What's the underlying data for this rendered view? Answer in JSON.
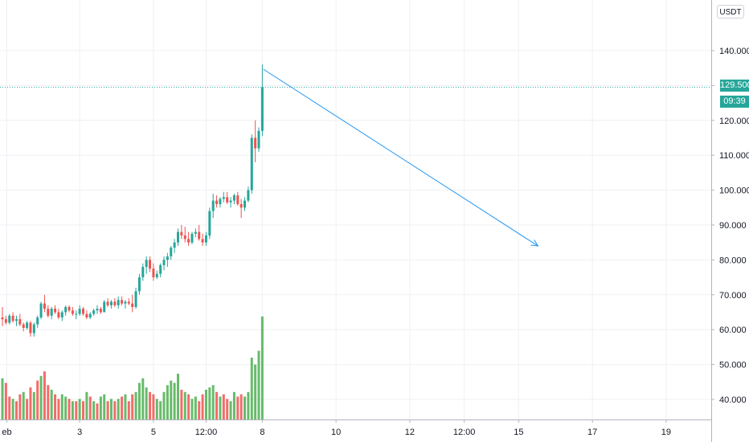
{
  "currency": "USDT",
  "last_price_label": "129.500",
  "countdown_label": "09:39",
  "colors": {
    "up": "#26a69a",
    "down": "#ef5350",
    "vol_up": "#4caf50",
    "vol_down": "#ef5350",
    "arrow": "#2196f3",
    "grid": "#eef0f3",
    "price_line": "#26a69a"
  },
  "chart_data": {
    "type": "candlestick",
    "title": "",
    "ylim": [
      32,
      146
    ],
    "grid": true,
    "y_ticks": [
      "140.000",
      "130.000",
      "120.000",
      "110.000",
      "100.000",
      "90.000",
      "80.000",
      "70.000",
      "60.000",
      "50.000",
      "40.000"
    ],
    "x_ticks": [
      {
        "label": "eb",
        "t": 1.25
      },
      {
        "label": "3",
        "t": 22
      },
      {
        "label": "5",
        "t": 43
      },
      {
        "label": "12:00",
        "t": 58
      },
      {
        "label": "8",
        "t": 74
      },
      {
        "label": "10",
        "t": 95
      },
      {
        "label": "12",
        "t": 116
      },
      {
        "label": "12:00",
        "t": 131.5
      },
      {
        "label": "15",
        "t": 147
      },
      {
        "label": "17",
        "t": 168
      },
      {
        "label": "19",
        "t": 189
      }
    ],
    "last_price": 129.5,
    "forecast_arrow": {
      "from": {
        "t": 74.25,
        "y": 134.7
      },
      "to": {
        "t": 152.5,
        "y": 84.0
      }
    },
    "candles": [
      [
        63.5,
        66.5,
        61,
        63
      ],
      [
        63,
        64,
        61.5,
        62
      ],
      [
        62,
        64.5,
        61.5,
        64
      ],
      [
        64,
        65,
        62,
        62.5
      ],
      [
        62.5,
        64,
        61,
        63
      ],
      [
        63,
        64.5,
        61,
        61.5
      ],
      [
        61.5,
        62,
        59.5,
        60.5
      ],
      [
        60.5,
        62.5,
        60,
        62
      ],
      [
        62,
        62.5,
        58,
        59
      ],
      [
        59,
        62,
        58,
        61.5
      ],
      [
        61.5,
        64,
        60.5,
        63.5
      ],
      [
        63.5,
        68,
        63,
        67.5
      ],
      [
        67.5,
        70,
        65,
        66
      ],
      [
        66,
        67,
        63.5,
        64
      ],
      [
        64,
        66.5,
        63,
        66
      ],
      [
        66,
        67,
        64.5,
        65
      ],
      [
        65,
        66,
        63,
        63.5
      ],
      [
        63.5,
        65.5,
        62.5,
        65
      ],
      [
        65,
        67,
        64,
        66.5
      ],
      [
        66.5,
        67,
        65,
        65.5
      ],
      [
        65.5,
        66.5,
        64,
        64.5
      ],
      [
        64.5,
        65.5,
        63,
        64.5
      ],
      [
        64.5,
        67,
        64,
        66
      ],
      [
        66,
        66.5,
        64,
        64.5
      ],
      [
        64.5,
        65.5,
        63,
        63.5
      ],
      [
        63.5,
        65,
        63,
        64.5
      ],
      [
        64.5,
        66,
        64,
        65.5
      ],
      [
        65.5,
        67,
        64.5,
        66
      ],
      [
        66,
        66.5,
        64.5,
        65
      ],
      [
        65,
        68.5,
        65,
        68
      ],
      [
        68,
        69,
        66.5,
        67
      ],
      [
        67,
        68.5,
        66,
        68
      ],
      [
        68,
        69,
        66.5,
        67
      ],
      [
        67,
        69.5,
        66,
        68.5
      ],
      [
        68.5,
        69.5,
        67,
        67.5
      ],
      [
        67.5,
        68.5,
        66,
        68
      ],
      [
        68,
        69,
        67,
        67.5
      ],
      [
        67.5,
        70,
        65,
        66.5
      ],
      [
        66.5,
        72,
        66,
        71
      ],
      [
        71,
        76,
        70,
        75
      ],
      [
        75,
        79,
        74,
        78
      ],
      [
        78,
        81,
        76,
        80
      ],
      [
        80,
        81,
        76.5,
        77.5
      ],
      [
        77.5,
        79,
        74,
        75
      ],
      [
        75,
        77,
        74.5,
        76
      ],
      [
        76,
        79,
        75,
        78.5
      ],
      [
        78.5,
        81,
        77,
        80
      ],
      [
        80,
        82,
        78,
        81
      ],
      [
        81,
        84,
        80,
        83.5
      ],
      [
        83.5,
        86,
        82,
        85
      ],
      [
        85,
        89,
        84,
        88
      ],
      [
        88,
        90,
        86,
        87
      ],
      [
        87,
        89.5,
        85,
        86
      ],
      [
        86,
        88,
        84,
        85
      ],
      [
        85,
        88,
        84.5,
        87.5
      ],
      [
        87.5,
        89,
        86.5,
        88
      ],
      [
        88,
        90,
        85.5,
        86
      ],
      [
        86,
        87.5,
        84,
        85
      ],
      [
        85,
        88,
        84,
        87
      ],
      [
        87,
        95,
        86,
        94
      ],
      [
        94,
        99,
        92,
        97
      ],
      [
        97,
        98.5,
        95,
        96
      ],
      [
        96,
        98,
        95,
        97.5
      ],
      [
        97.5,
        99.5,
        96.5,
        98
      ],
      [
        98,
        99.5,
        96,
        96.5
      ],
      [
        96.5,
        98,
        95,
        97
      ],
      [
        97,
        99,
        96,
        98.5
      ],
      [
        98.5,
        99.5,
        95.5,
        96
      ],
      [
        96,
        97.5,
        92,
        95
      ],
      [
        95,
        98,
        94,
        97
      ],
      [
        97,
        101,
        96.5,
        100
      ],
      [
        100,
        116,
        99,
        115
      ],
      [
        115,
        120,
        108,
        112
      ],
      [
        112,
        118,
        111,
        117
      ],
      [
        117,
        136,
        115.5,
        129.5
      ]
    ],
    "volumes": [
      [
        18,
        "up"
      ],
      [
        16,
        "down"
      ],
      [
        10,
        "down"
      ],
      [
        9,
        "up"
      ],
      [
        8,
        "down"
      ],
      [
        11,
        "down"
      ],
      [
        12,
        "up"
      ],
      [
        9,
        "down"
      ],
      [
        14,
        "down"
      ],
      [
        12,
        "up"
      ],
      [
        17,
        "down"
      ],
      [
        19,
        "up"
      ],
      [
        21,
        "down"
      ],
      [
        15,
        "down"
      ],
      [
        13,
        "up"
      ],
      [
        11,
        "down"
      ],
      [
        9,
        "down"
      ],
      [
        11,
        "up"
      ],
      [
        10,
        "up"
      ],
      [
        9,
        "down"
      ],
      [
        8,
        "up"
      ],
      [
        8,
        "down"
      ],
      [
        9,
        "up"
      ],
      [
        8,
        "down"
      ],
      [
        12,
        "up"
      ],
      [
        10,
        "down"
      ],
      [
        8,
        "up"
      ],
      [
        7,
        "down"
      ],
      [
        10,
        "up"
      ],
      [
        11,
        "up"
      ],
      [
        8,
        "down"
      ],
      [
        9,
        "up"
      ],
      [
        8,
        "down"
      ],
      [
        9,
        "up"
      ],
      [
        10,
        "down"
      ],
      [
        11,
        "up"
      ],
      [
        8,
        "down"
      ],
      [
        11,
        "down"
      ],
      [
        12,
        "up"
      ],
      [
        16,
        "up"
      ],
      [
        18,
        "up"
      ],
      [
        14,
        "up"
      ],
      [
        12,
        "down"
      ],
      [
        11,
        "down"
      ],
      [
        9,
        "up"
      ],
      [
        8,
        "up"
      ],
      [
        12,
        "up"
      ],
      [
        15,
        "up"
      ],
      [
        17,
        "up"
      ],
      [
        16,
        "up"
      ],
      [
        20,
        "up"
      ],
      [
        13,
        "down"
      ],
      [
        12,
        "up"
      ],
      [
        11,
        "down"
      ],
      [
        9,
        "up"
      ],
      [
        10,
        "up"
      ],
      [
        8,
        "down"
      ],
      [
        11,
        "down"
      ],
      [
        13,
        "up"
      ],
      [
        14,
        "up"
      ],
      [
        15,
        "up"
      ],
      [
        12,
        "down"
      ],
      [
        10,
        "up"
      ],
      [
        11,
        "down"
      ],
      [
        9,
        "down"
      ],
      [
        8,
        "up"
      ],
      [
        12,
        "up"
      ],
      [
        10,
        "down"
      ],
      [
        11,
        "down"
      ],
      [
        10,
        "up"
      ],
      [
        12,
        "up"
      ],
      [
        27,
        "up"
      ],
      [
        24,
        "up"
      ],
      [
        30,
        "up"
      ],
      [
        45,
        "up"
      ]
    ]
  }
}
